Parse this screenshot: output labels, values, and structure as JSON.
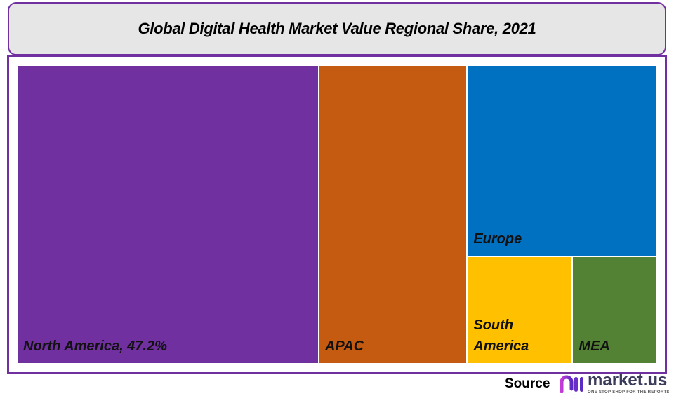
{
  "chart_data": {
    "type": "treemap",
    "title": "Global Digital Health Market Value Regional Share, 2021",
    "unit": "%",
    "items": [
      {
        "name": "North America",
        "label": "North America, 47.2%",
        "value": 47.2,
        "color": "#7030a0"
      },
      {
        "name": "APAC",
        "label": "APAC",
        "value": 23.2,
        "color": "#c55a11"
      },
      {
        "name": "Europe",
        "label": "Europe",
        "value": 19.0,
        "color": "#0070c0"
      },
      {
        "name": "South America",
        "label": "South America",
        "value": 5.9,
        "color": "#ffc000"
      },
      {
        "name": "MEA",
        "label": "MEA",
        "value": 4.7,
        "color": "#548235"
      }
    ]
  },
  "footer": {
    "source_label": "Source",
    "logo_text": "market.us",
    "logo_tagline": "ONE STOP SHOP FOR THE REPORTS"
  },
  "colors": {
    "frame": "#7030a0",
    "title_bg": "#e7e6e6"
  }
}
